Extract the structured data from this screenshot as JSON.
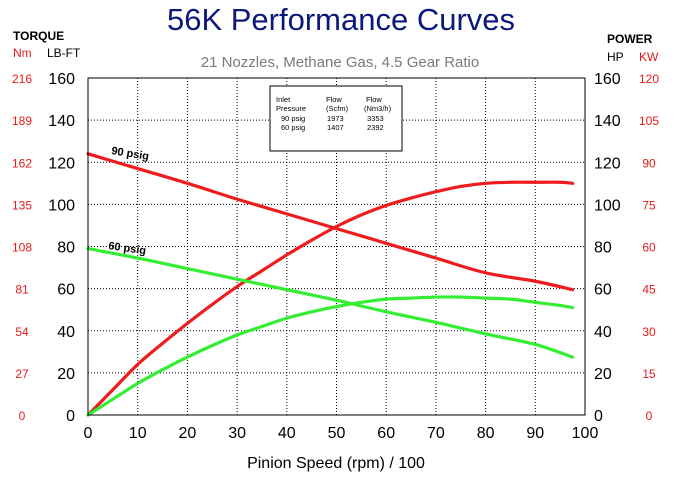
{
  "chart_data": {
    "type": "line",
    "title": "56K Performance Curves",
    "subtitle": "21 Nozzles, Methane Gas, 4.5 Gear Ratio",
    "xlabel": "Pinion Speed (rpm) / 100",
    "xlim": [
      0,
      100
    ],
    "ylim": [
      0,
      160
    ],
    "x_ticks": [
      0,
      10,
      20,
      30,
      40,
      50,
      60,
      70,
      80,
      90,
      100
    ],
    "y_ticks": [
      0,
      20,
      40,
      60,
      80,
      100,
      120,
      140,
      160
    ],
    "grid": true,
    "left_axis": {
      "header": "TORQUE",
      "units": [
        "Nm",
        "LB-FT"
      ],
      "nm_ticks": [
        "0",
        "27",
        "54",
        "81",
        "108",
        "135",
        "162",
        "189",
        "216"
      ]
    },
    "right_axis": {
      "header": "POWER",
      "units": [
        "HP",
        "KW"
      ],
      "kw_ticks": [
        "0",
        "15",
        "30",
        "45",
        "60",
        "75",
        "90",
        "105",
        "120"
      ]
    },
    "series": [
      {
        "name": "90 psig",
        "color": "#ee1c1c",
        "x": [
          0,
          10,
          20,
          30,
          40,
          50,
          60,
          70,
          80,
          90,
          97.5
        ],
        "values": [
          124,
          117,
          110,
          102.5,
          95.5,
          88.5,
          81.5,
          74.5,
          67.5,
          63.5,
          59.5
        ]
      },
      {
        "color": "#ee1c1c",
        "x": [
          0,
          5,
          10,
          15,
          20,
          25,
          30,
          35,
          40,
          45,
          50,
          55,
          60,
          65,
          70,
          75,
          80,
          85,
          90,
          95,
          97.5
        ],
        "values": [
          0,
          12,
          24,
          34,
          43.5,
          52.5,
          61,
          68.5,
          76,
          83,
          89.5,
          95,
          99.5,
          103,
          106,
          108.5,
          110,
          110.5,
          110.5,
          110.5,
          110
        ]
      },
      {
        "name": "60 psig",
        "color": "#33ee33",
        "x": [
          0,
          10,
          20,
          30,
          40,
          50,
          60,
          70,
          80,
          90,
          97.5
        ],
        "values": [
          79,
          74.5,
          69.5,
          64.5,
          59.5,
          54.5,
          49,
          44,
          38.5,
          33.5,
          27.5
        ]
      },
      {
        "color": "#33ee33",
        "x": [
          0,
          5,
          10,
          15,
          20,
          25,
          30,
          35,
          40,
          45,
          50,
          55,
          60,
          65,
          70,
          75,
          80,
          85,
          90,
          95,
          97.5
        ],
        "values": [
          0,
          7.5,
          15,
          21.5,
          27.5,
          33,
          38,
          42,
          46,
          49,
          51.5,
          53.5,
          55,
          55.5,
          56,
          56,
          55.5,
          55,
          53.5,
          52,
          51
        ]
      }
    ],
    "table": {
      "header": [
        [
          "Inlet",
          "Flow",
          "Flow"
        ],
        [
          "Pressure",
          "(Scfm)",
          "(Nm3/h)"
        ]
      ],
      "rows": [
        [
          "90  psig",
          "1973",
          "3353"
        ],
        [
          "60  psig",
          "1407",
          "2392"
        ]
      ]
    }
  }
}
